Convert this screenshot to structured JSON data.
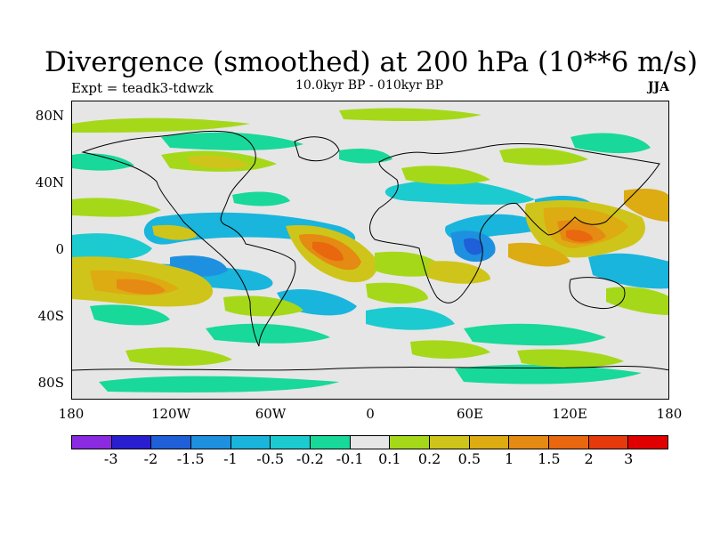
{
  "title": "Divergence (smoothed) at 200 hPa (10**6 m/s)",
  "experiment": "Expt = teadk3-tdwzk",
  "subtitle": "10.0kyr BP - 010kyr BP",
  "season": "JJA",
  "lat_labels": [
    "80N",
    "40N",
    "0",
    "40S",
    "80S"
  ],
  "lon_labels": [
    "180",
    "120W",
    "60W",
    "0",
    "60E",
    "120E",
    "180"
  ],
  "colorbar": {
    "labels": [
      "-3",
      "-2",
      "-1.5",
      "-1",
      "-0.5",
      "-0.2",
      "-0.1",
      "0.1",
      "0.2",
      "0.5",
      "1",
      "1.5",
      "2",
      "3"
    ],
    "colors": [
      "#8a2be2",
      "#2a1fd0",
      "#1f5fd8",
      "#1e90e0",
      "#19b5dc",
      "#1ccbd0",
      "#18d89a",
      "#e6e6e6",
      "#a6d81a",
      "#cfc51a",
      "#ddab12",
      "#e58a12",
      "#e9670f",
      "#e63a0d",
      "#e00000"
    ]
  },
  "colors": {
    "background": "#e6e6e6",
    "coast": "#000000"
  }
}
